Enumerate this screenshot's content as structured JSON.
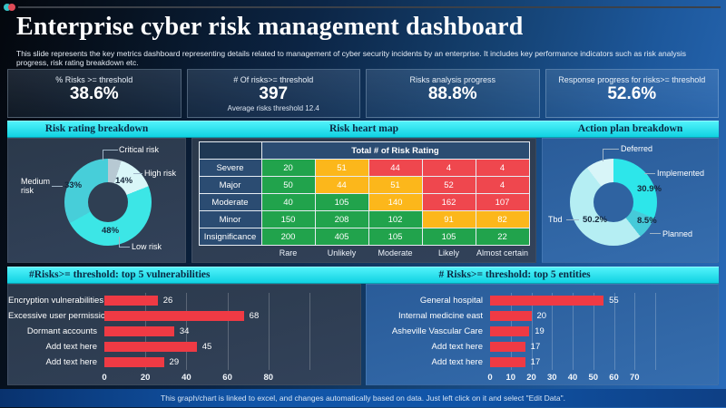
{
  "page": {
    "title": "Enterprise cyber risk management dashboard",
    "subtitle": "This slide represents the key metrics dashboard representing details related to management of cyber security incidents by an enterprise. It includes key performance indicators such as risk analysis progress, risk rating breakdown etc.",
    "footer": "This graph/chart is linked to excel, and changes automatically based on data. Just left click on it and select \"Edit Data\"."
  },
  "colors": {
    "accent_cyan": "#1fe0ec",
    "heat_green": "#21a34c",
    "heat_yellow": "#fcb71b",
    "heat_red": "#ef474e",
    "bar_red": "#ef3a44"
  },
  "kpis": [
    {
      "label": "% Risks >= threshold",
      "value": "38.6%"
    },
    {
      "label": "# Of risks>= threshold",
      "value": "397",
      "caption": "Average risks threshold 12.4"
    },
    {
      "label": "Risks analysis progress",
      "value": "88.8%"
    },
    {
      "label": "Response progress for risks>= threshold",
      "value": "52.6%"
    }
  ],
  "sections": {
    "risk_rating": "Risk rating breakdown",
    "heat_map": "Risk heart map",
    "action_plan": "Action plan breakdown",
    "top_vulnerabilities": "#Risks>= threshold: top 5 vulnerabilities",
    "top_entities": "# Risks>= threshold: top 5 entities"
  },
  "chart_data": [
    {
      "id": "risk_rating_breakdown",
      "type": "pie",
      "donut": true,
      "title": "Risk rating breakdown",
      "segments": [
        {
          "label": "Critical risk",
          "value": 5,
          "pct_label": "",
          "color": "#b7c9d3"
        },
        {
          "label": "High risk",
          "value": 14,
          "pct_label": "14%",
          "color": "#d9f6f8"
        },
        {
          "label": "Low risk",
          "value": 48,
          "pct_label": "48%",
          "color": "#3ce6e6"
        },
        {
          "label": "Medium risk",
          "value": 33,
          "pct_label": "33%",
          "color": "#47ced9"
        }
      ]
    },
    {
      "id": "action_plan_breakdown",
      "type": "pie",
      "donut": true,
      "title": "Action plan breakdown",
      "segments": [
        {
          "label": "Implemented",
          "value": 30.9,
          "pct_label": "30.9%",
          "color": "#2de6ea"
        },
        {
          "label": "Planned",
          "value": 8.5,
          "pct_label": "8.5%",
          "color": "#46cad9"
        },
        {
          "label": "Tbd",
          "value": 50.2,
          "pct_label": "50.2%",
          "color": "#b5eef3"
        },
        {
          "label": "Deferred",
          "value": 10.4,
          "pct_label": "",
          "color": "#d8f5f8"
        }
      ]
    },
    {
      "id": "risk_heat_map",
      "type": "heatmap",
      "title": "Risk heart map",
      "corner_header": "Total # of Risk Rating",
      "row_labels": [
        "Severe",
        "Major",
        "Moderate",
        "Minor",
        "Insignificance"
      ],
      "col_labels": [
        "Rare",
        "Unlikely",
        "Moderate",
        "Likely",
        "Almost certain"
      ],
      "values": [
        [
          20,
          51,
          44,
          4,
          4
        ],
        [
          50,
          44,
          51,
          52,
          4
        ],
        [
          40,
          105,
          140,
          162,
          107
        ],
        [
          150,
          208,
          102,
          91,
          82
        ],
        [
          200,
          405,
          105,
          105,
          22
        ]
      ],
      "cell_colors": [
        [
          "green",
          "yellow",
          "red",
          "red",
          "red"
        ],
        [
          "green",
          "yellow",
          "yellow",
          "red",
          "red"
        ],
        [
          "green",
          "green",
          "yellow",
          "red",
          "red"
        ],
        [
          "green",
          "green",
          "green",
          "yellow",
          "yellow"
        ],
        [
          "green",
          "green",
          "green",
          "green",
          "green"
        ]
      ]
    },
    {
      "id": "top_vulnerabilities",
      "type": "bar",
      "orientation": "horizontal",
      "title": "#Risks>= threshold: top 5 vulnerabilities",
      "categories": [
        "Encryption vulnerabilities",
        "Excessive user permissions",
        "Dormant accounts",
        "Add text here",
        "Add text here"
      ],
      "values": [
        26,
        68,
        34,
        45,
        29
      ],
      "xticks": [
        0,
        20,
        40,
        60,
        80
      ]
    },
    {
      "id": "top_entities",
      "type": "bar",
      "orientation": "horizontal",
      "title": "# Risks>= threshold: top 5 entities",
      "categories": [
        "General hospital",
        "Internal medicine east",
        "Asheville Vascular Care",
        "Add text here",
        "Add text here"
      ],
      "values": [
        55,
        20,
        19,
        17,
        17
      ],
      "xticks": [
        0,
        10,
        20,
        30,
        40,
        50,
        60,
        70
      ]
    }
  ]
}
